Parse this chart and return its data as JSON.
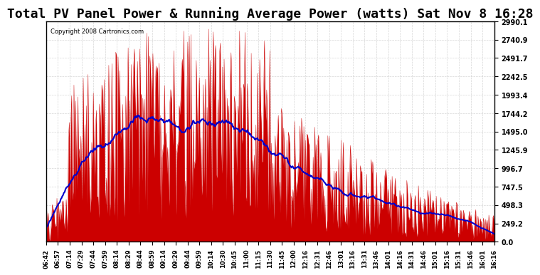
{
  "title": "Total PV Panel Power & Running Average Power (watts) Sat Nov 8 16:28",
  "copyright": "Copyright 2008 Cartronics.com",
  "y_ticks": [
    0.0,
    249.2,
    498.3,
    747.5,
    996.7,
    1245.9,
    1495.0,
    1744.2,
    1993.4,
    2242.5,
    2491.7,
    2740.9,
    2990.1
  ],
  "x_labels": [
    "06:42",
    "06:57",
    "07:14",
    "07:29",
    "07:44",
    "07:59",
    "08:14",
    "08:29",
    "08:44",
    "08:59",
    "09:14",
    "09:29",
    "09:44",
    "09:59",
    "10:14",
    "10:30",
    "10:45",
    "11:00",
    "11:15",
    "11:30",
    "11:45",
    "12:00",
    "12:16",
    "12:31",
    "12:46",
    "13:01",
    "13:16",
    "13:31",
    "13:46",
    "14:01",
    "14:16",
    "14:31",
    "14:46",
    "15:01",
    "15:16",
    "15:31",
    "15:46",
    "16:01",
    "16:16"
  ],
  "background_color": "#ffffff",
  "plot_bg_color": "#ffffff",
  "grid_color": "#cccccc",
  "pv_color": "#cc0000",
  "avg_color": "#0000cc",
  "title_fontsize": 13,
  "ymax": 2990.1,
  "ymin": 0.0
}
